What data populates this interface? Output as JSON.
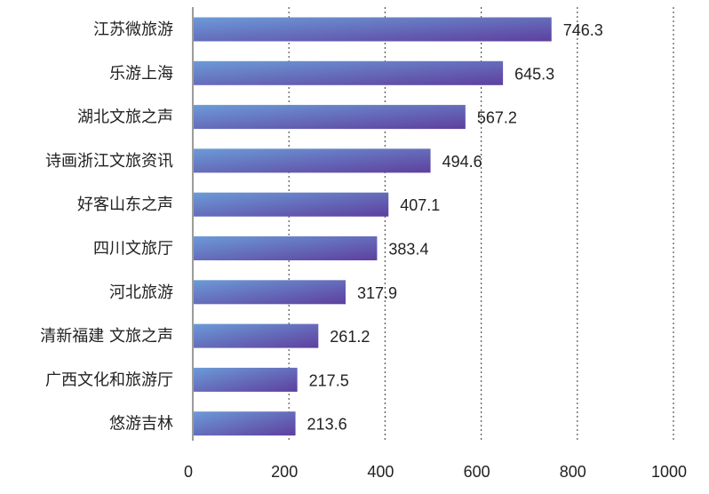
{
  "chart_data": {
    "type": "bar",
    "orientation": "horizontal",
    "categories": [
      "江苏微旅游",
      "乐游上海",
      "湖北文旅之声",
      "诗画浙江文旅资讯",
      "好客山东之声",
      "四川文旅厅",
      "河北旅游",
      "清新福建 文旅之声",
      "广西文化和旅游厅",
      "悠游吉林"
    ],
    "values": [
      746.3,
      645.3,
      567.2,
      494.6,
      407.1,
      383.4,
      317.9,
      261.2,
      217.5,
      213.6
    ],
    "value_labels": [
      "746.3",
      "645.3",
      "567.2",
      "494.6",
      "407.1",
      "383.4",
      "317.9",
      "261.2",
      "217.5",
      "213.6"
    ],
    "xlim": [
      0,
      1000
    ],
    "x_ticks": [
      "0",
      "200",
      "400",
      "600",
      "800",
      "1000"
    ],
    "grid": "vertical dotted",
    "colors": {
      "bar_start": "#6c9bd8",
      "bar_end": "#5e3f9e",
      "axis": "#666666",
      "grid": "#555555",
      "text": "#222222"
    }
  }
}
